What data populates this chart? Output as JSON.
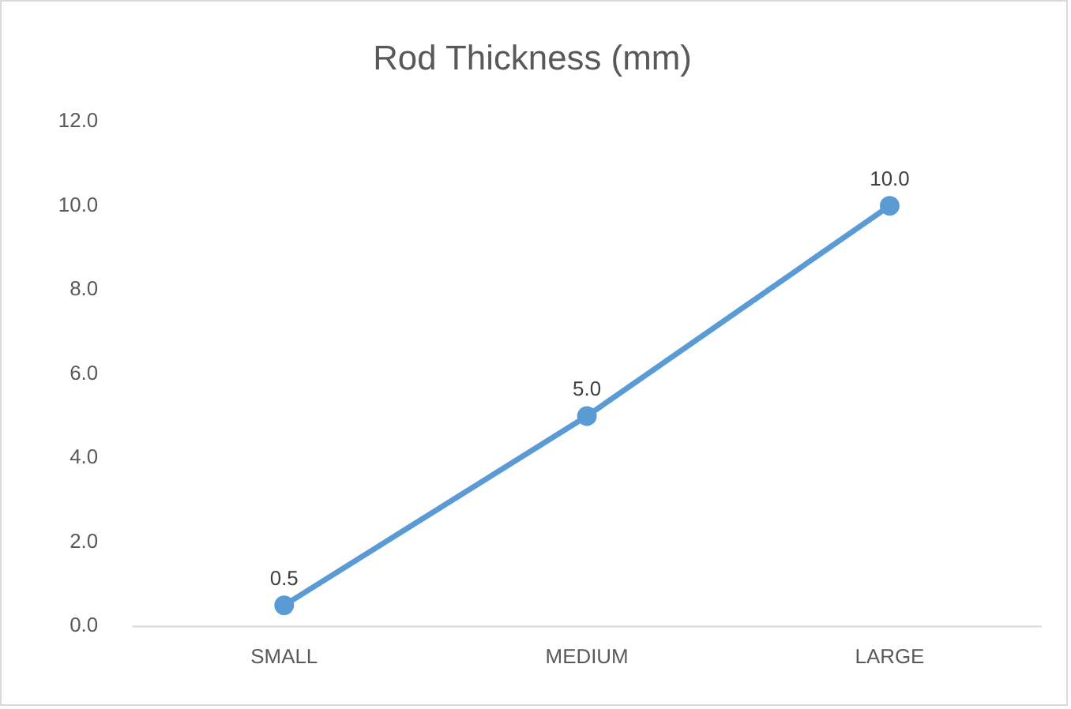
{
  "chart_data": {
    "type": "line",
    "title": "Rod Thickness (mm)",
    "categories": [
      "SMALL",
      "MEDIUM",
      "LARGE"
    ],
    "series": [
      {
        "color": "#5b9bd5",
        "values": [
          0.5,
          5,
          10
        ],
        "value_labels": [
          "0.5",
          "5.0",
          "10.0"
        ]
      }
    ],
    "ylim": [
      0,
      12
    ],
    "yticks": [
      {
        "value": 0,
        "label": "0.0"
      },
      {
        "value": 2,
        "label": "2.0"
      },
      {
        "value": 4,
        "label": "4.0"
      },
      {
        "value": 6,
        "label": "6.0"
      },
      {
        "value": 8,
        "label": "8.0"
      },
      {
        "value": 10,
        "label": "10.0"
      },
      {
        "value": 12,
        "label": "12.0"
      }
    ],
    "grid": false,
    "legend": false,
    "marker": "circle",
    "line_style": "solid"
  }
}
